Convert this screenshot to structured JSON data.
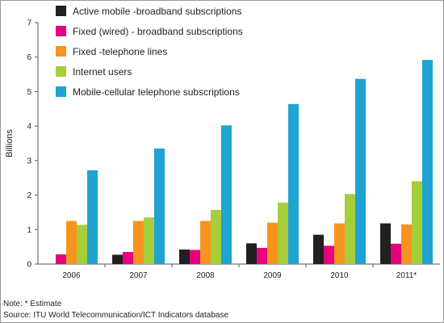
{
  "chart_data": {
    "type": "bar",
    "ylabel": "Billions",
    "ylim": [
      0,
      7
    ],
    "yticks": [
      0,
      1,
      2,
      3,
      4,
      5,
      6,
      7
    ],
    "categories": [
      "2006",
      "2007",
      "2008",
      "2009",
      "2010",
      "2011*"
    ],
    "legend_position": "top-left",
    "grid": false,
    "series": [
      {
        "name": "Active mobile -broadband subscriptions",
        "color": "#231f20",
        "values": [
          null,
          0.27,
          0.42,
          0.6,
          0.85,
          1.18
        ]
      },
      {
        "name": "Fixed (wired) - broadband subscriptions",
        "color": "#e6007e",
        "values": [
          0.28,
          0.35,
          0.41,
          0.47,
          0.53,
          0.59
        ]
      },
      {
        "name": "Fixed -telephone lines",
        "color": "#f7941d",
        "values": [
          1.25,
          1.25,
          1.25,
          1.2,
          1.18,
          1.15
        ]
      },
      {
        "name": "Internet users",
        "color": "#a6ce39",
        "values": [
          1.14,
          1.35,
          1.57,
          1.78,
          2.03,
          2.4
        ]
      },
      {
        "name": "Mobile-cellular telephone subscriptions",
        "color": "#1fa3d1",
        "values": [
          2.72,
          3.35,
          4.02,
          4.64,
          5.37,
          5.92
        ]
      }
    ]
  },
  "footer": {
    "note": "Note: * Estimate",
    "source": "Source: ITU World Telecommunication/ICT Indicators database"
  }
}
